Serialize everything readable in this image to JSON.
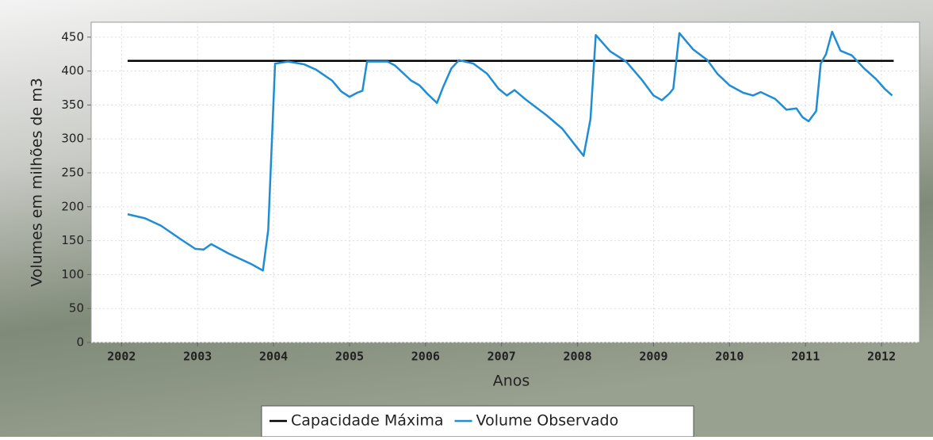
{
  "chart_data": {
    "type": "line",
    "x_label": "Anos",
    "y_label": "Volumes em milhões de m3",
    "xlim": [
      2001.6,
      2012.5
    ],
    "ylim": [
      0,
      472
    ],
    "xticks": [
      2002,
      2003,
      2004,
      2005,
      2006,
      2007,
      2008,
      2009,
      2010,
      2011,
      2012
    ],
    "yticks": [
      0,
      50,
      100,
      150,
      200,
      250,
      300,
      350,
      400,
      450
    ],
    "grid": true,
    "legend": "bottom",
    "series": [
      {
        "name": "Capacidade Máxima",
        "color": "#000000",
        "x": [
          2002.08,
          2012.16
        ],
        "values": [
          415,
          415
        ]
      },
      {
        "name": "Volume Observado",
        "color": "#1f8dd6",
        "x": [
          2002.08,
          2002.31,
          2002.52,
          2002.78,
          2002.97,
          2003.08,
          2003.18,
          2003.41,
          2003.7,
          2003.86,
          2003.93,
          2004.02,
          2004.19,
          2004.4,
          2004.56,
          2004.77,
          2004.89,
          2005.0,
          2005.1,
          2005.17,
          2005.23,
          2005.5,
          2005.6,
          2005.81,
          2005.92,
          2006.02,
          2006.15,
          2006.23,
          2006.34,
          2006.44,
          2006.63,
          2006.81,
          2006.96,
          2007.07,
          2007.17,
          2007.33,
          2007.59,
          2007.8,
          2007.96,
          2008.08,
          2008.17,
          2008.24,
          2008.43,
          2008.64,
          2008.84,
          2009.0,
          2009.11,
          2009.21,
          2009.26,
          2009.34,
          2009.52,
          2009.71,
          2009.84,
          2010.0,
          2010.18,
          2010.31,
          2010.41,
          2010.6,
          2010.75,
          2010.88,
          2010.96,
          2011.04,
          2011.14,
          2011.2,
          2011.27,
          2011.35,
          2011.46,
          2011.61,
          2011.77,
          2011.93,
          2012.04,
          2012.14
        ],
        "values": [
          189,
          183,
          172,
          152,
          138,
          137,
          145,
          131,
          116,
          106,
          166,
          411,
          414,
          410,
          402,
          386,
          370,
          362,
          368,
          371,
          414,
          414,
          408,
          386,
          379,
          367,
          353,
          376,
          404,
          416,
          411,
          396,
          374,
          364,
          372,
          357,
          335,
          315,
          292,
          275,
          329,
          453,
          429,
          414,
          388,
          364,
          357,
          367,
          374,
          456,
          432,
          416,
          396,
          379,
          368,
          364,
          369,
          359,
          343,
          345,
          332,
          326,
          341,
          411,
          425,
          458,
          430,
          423,
          404,
          388,
          374,
          364
        ]
      }
    ]
  }
}
